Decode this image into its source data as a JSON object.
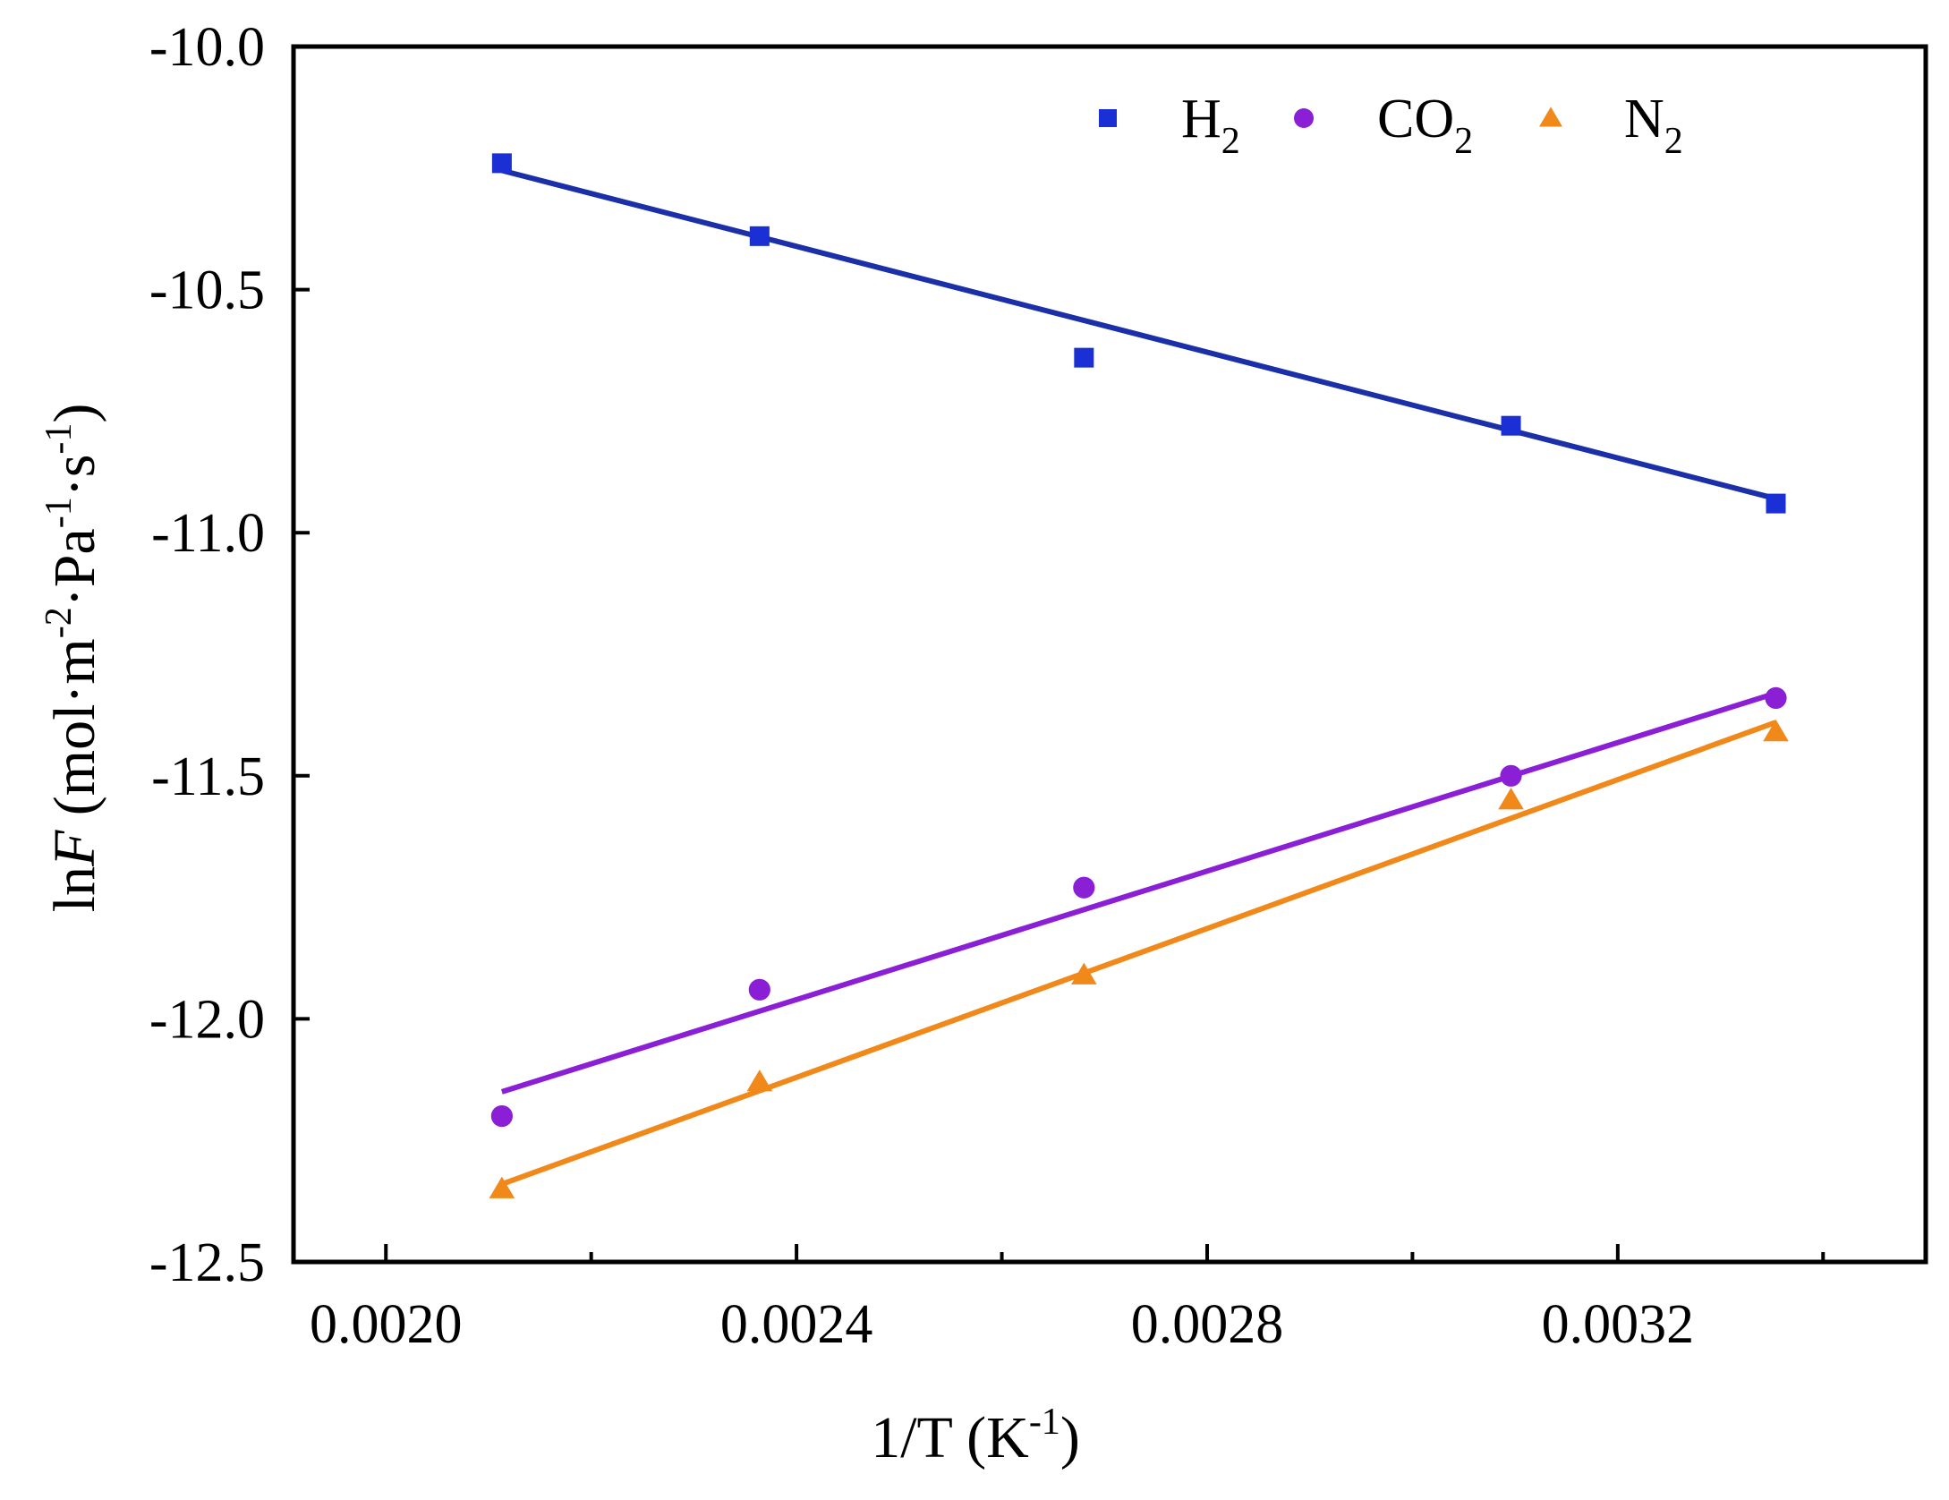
{
  "chart_data": {
    "type": "scatter",
    "title": "",
    "xlabel": "1/T (K-1)",
    "xlabel_parts": {
      "main": "1/T  (K",
      "sup": "-1",
      "close": ")"
    },
    "ylabel": "lnF (mol·m-2·Pa-1·s-1)",
    "ylabel_parts": {
      "ln": "ln",
      "var": "F",
      "pre": " (mol·m",
      "sup1": "-2",
      "mid": "·Pa",
      "sup2": "-1",
      "mid2": "·s",
      "sup3": "-1",
      "close": ")"
    },
    "xlim": [
      0.00191,
      0.0035
    ],
    "ylim": [
      -12.5,
      -10.0
    ],
    "xticks": [
      0.002,
      0.0024,
      0.0028,
      0.0032
    ],
    "xtick_labels": [
      "0.0020",
      "0.0024",
      "0.0028",
      "0.0032"
    ],
    "xminor": [
      0.0022,
      0.0026,
      0.003,
      0.0034
    ],
    "yticks": [
      -10.0,
      -10.5,
      -11.0,
      -11.5,
      -12.0,
      -12.5
    ],
    "ytick_labels": [
      "-10.0",
      "-10.5",
      "-11.0",
      "-11.5",
      "-12.0",
      "-12.5"
    ],
    "legend_position": "top-right",
    "x": [
      0.002113,
      0.002364,
      0.00268,
      0.003096,
      0.003354
    ],
    "series": [
      {
        "name": "H2",
        "label_main": "H",
        "label_sub": "2",
        "marker": "square",
        "color": "#1a2fd4",
        "line_color": "#1a2fa8",
        "values": [
          -10.24,
          -10.39,
          -10.64,
          -10.78,
          -10.94
        ],
        "fit": {
          "x": [
            0.002113,
            0.003354
          ],
          "y": [
            -10.255,
            -10.93
          ]
        }
      },
      {
        "name": "CO2",
        "label_main": "CO",
        "label_sub": "2",
        "marker": "circle",
        "color": "#8b1fd6",
        "line_color": "#8b1fd6",
        "values": [
          -12.2,
          -11.94,
          -11.73,
          -11.5,
          -11.34
        ],
        "fit": {
          "x": [
            0.002113,
            0.003354
          ],
          "y": [
            -12.15,
            -11.33
          ]
        }
      },
      {
        "name": "N2",
        "label_main": "N",
        "label_sub": "2",
        "marker": "triangle",
        "color": "#f0891a",
        "line_color": "#f0891a",
        "values": [
          -12.35,
          -12.13,
          -11.91,
          -11.55,
          -11.41
        ],
        "fit": {
          "x": [
            0.002113,
            0.003354
          ],
          "y": [
            -12.34,
            -11.39
          ]
        }
      }
    ]
  }
}
